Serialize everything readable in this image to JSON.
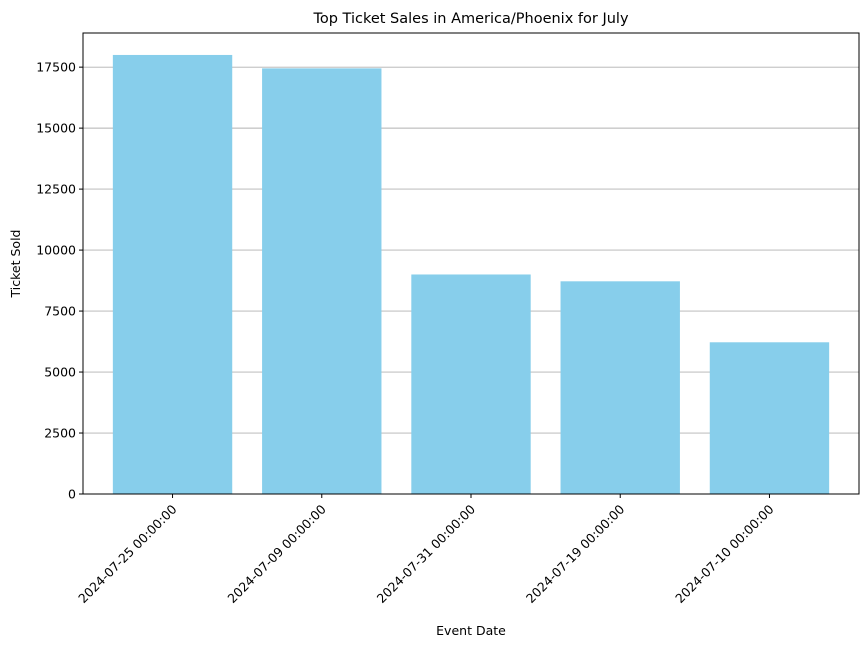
{
  "chart_data": {
    "type": "bar",
    "title": "Top Ticket Sales in America/Phoenix for July",
    "xlabel": "Event Date",
    "ylabel": "Ticket Sold",
    "categories": [
      "2024-07-25 00:00:00",
      "2024-07-09 00:00:00",
      "2024-07-31 00:00:00",
      "2024-07-19 00:00:00",
      "2024-07-10 00:00:00"
    ],
    "values": [
      18000,
      17450,
      9000,
      8720,
      6220
    ],
    "ylim": [
      0,
      18900
    ],
    "yticks": [
      0,
      2500,
      5000,
      7500,
      10000,
      12500,
      15000,
      17500
    ],
    "grid": "y-axis horizontal lines",
    "bar_color": "#87ceeb",
    "grid_color": "#b0b0b0"
  }
}
